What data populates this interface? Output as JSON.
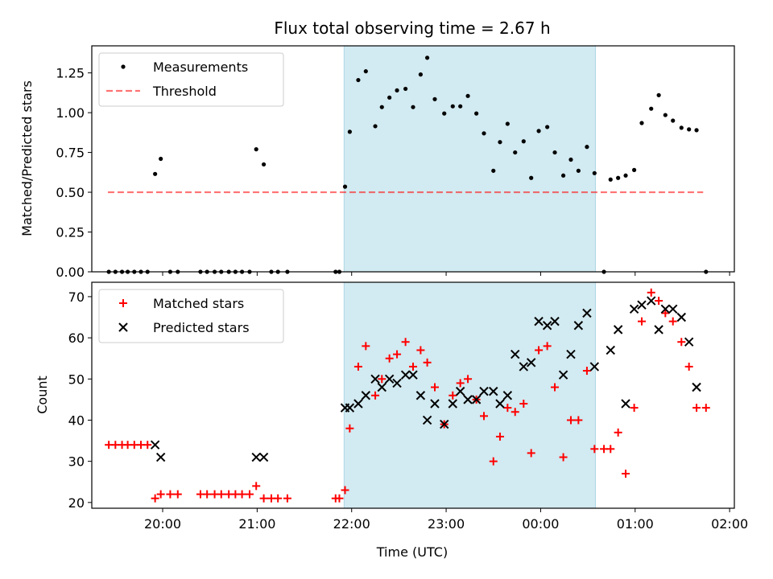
{
  "chart_data": [
    {
      "type": "scatter",
      "title": "Flux total observing time = 2.67 h",
      "xlabel": "",
      "ylabel": "Matched/Predicted stars",
      "xlim": [
        19.25,
        26.05
      ],
      "ylim": [
        0.0,
        1.42
      ],
      "yticks": [
        0.0,
        0.25,
        0.5,
        0.75,
        1.0,
        1.25
      ],
      "ytick_labels": [
        "0.00",
        "0.25",
        "0.50",
        "0.75",
        "1.00",
        "1.25"
      ],
      "xticks": [
        20,
        21,
        22,
        23,
        24,
        25,
        26
      ],
      "shaded_span": [
        21.92,
        24.58
      ],
      "shade_color": "#add8e6",
      "legend": {
        "position": "upper-left",
        "entries": [
          "Measurements",
          "Threshold"
        ]
      },
      "threshold": {
        "name": "Threshold",
        "y": 0.5,
        "x_range": [
          19.42,
          25.72
        ],
        "color": "#ff0000",
        "style": "dashed"
      },
      "series": [
        {
          "name": "Measurements",
          "marker": "dot",
          "color": "#000000",
          "points": [
            [
              19.43,
              0
            ],
            [
              19.5,
              0
            ],
            [
              19.57,
              0
            ],
            [
              19.63,
              0
            ],
            [
              19.7,
              0
            ],
            [
              19.77,
              0
            ],
            [
              19.84,
              0
            ],
            [
              19.92,
              0.615
            ],
            [
              19.98,
              0.71
            ],
            [
              20.08,
              0
            ],
            [
              20.16,
              0
            ],
            [
              20.4,
              0
            ],
            [
              20.47,
              0
            ],
            [
              20.55,
              0
            ],
            [
              20.62,
              0
            ],
            [
              20.7,
              0
            ],
            [
              20.77,
              0
            ],
            [
              20.84,
              0
            ],
            [
              20.92,
              0
            ],
            [
              20.99,
              0.77
            ],
            [
              21.07,
              0.675
            ],
            [
              21.15,
              0
            ],
            [
              21.22,
              0
            ],
            [
              21.32,
              0
            ],
            [
              21.83,
              0
            ],
            [
              21.87,
              0
            ],
            [
              21.93,
              0.535
            ],
            [
              21.98,
              0.88
            ],
            [
              22.07,
              1.205
            ],
            [
              22.15,
              1.26
            ],
            [
              22.25,
              0.915
            ],
            [
              22.32,
              1.035
            ],
            [
              22.4,
              1.095
            ],
            [
              22.48,
              1.14
            ],
            [
              22.57,
              1.15
            ],
            [
              22.65,
              1.035
            ],
            [
              22.73,
              1.24
            ],
            [
              22.8,
              1.345
            ],
            [
              22.88,
              1.085
            ],
            [
              22.98,
              0.995
            ],
            [
              23.07,
              1.04
            ],
            [
              23.15,
              1.04
            ],
            [
              23.23,
              1.105
            ],
            [
              23.32,
              0.995
            ],
            [
              23.4,
              0.87
            ],
            [
              23.5,
              0.635
            ],
            [
              23.57,
              0.815
            ],
            [
              23.65,
              0.93
            ],
            [
              23.73,
              0.75
            ],
            [
              23.82,
              0.82
            ],
            [
              23.9,
              0.59
            ],
            [
              23.98,
              0.885
            ],
            [
              24.07,
              0.91
            ],
            [
              24.15,
              0.75
            ],
            [
              24.24,
              0.605
            ],
            [
              24.32,
              0.705
            ],
            [
              24.4,
              0.635
            ],
            [
              24.49,
              0.785
            ],
            [
              24.57,
              0.62
            ],
            [
              24.67,
              0
            ],
            [
              24.74,
              0.58
            ],
            [
              24.82,
              0.59
            ],
            [
              24.9,
              0.605
            ],
            [
              24.99,
              0.64
            ],
            [
              25.07,
              0.935
            ],
            [
              25.17,
              1.025
            ],
            [
              25.25,
              1.11
            ],
            [
              25.32,
              0.985
            ],
            [
              25.4,
              0.95
            ],
            [
              25.49,
              0.905
            ],
            [
              25.57,
              0.895
            ],
            [
              25.65,
              0.89
            ],
            [
              25.75,
              0
            ]
          ]
        }
      ]
    },
    {
      "type": "scatter",
      "title": "",
      "xlabel": "Time (UTC)",
      "ylabel": "Count",
      "xlim": [
        19.25,
        26.05
      ],
      "ylim": [
        18.6,
        73.5
      ],
      "yticks": [
        20,
        30,
        40,
        50,
        60,
        70
      ],
      "ytick_labels": [
        "20",
        "30",
        "40",
        "50",
        "60",
        "70"
      ],
      "xticks": [
        20,
        21,
        22,
        23,
        24,
        25,
        26
      ],
      "xtick_labels": [
        "20:00",
        "21:00",
        "22:00",
        "23:00",
        "00:00",
        "01:00",
        "02:00"
      ],
      "shaded_span": [
        21.92,
        24.58
      ],
      "shade_color": "#add8e6",
      "legend": {
        "position": "upper-left",
        "entries": [
          "Matched stars",
          "Predicted stars"
        ]
      },
      "series": [
        {
          "name": "Matched stars",
          "marker": "plus",
          "color": "#ff0000",
          "points": [
            [
              19.43,
              34
            ],
            [
              19.5,
              34
            ],
            [
              19.57,
              34
            ],
            [
              19.63,
              34
            ],
            [
              19.7,
              34
            ],
            [
              19.77,
              34
            ],
            [
              19.84,
              34
            ],
            [
              19.92,
              21
            ],
            [
              19.98,
              22
            ],
            [
              20.08,
              22
            ],
            [
              20.16,
              22
            ],
            [
              20.4,
              22
            ],
            [
              20.47,
              22
            ],
            [
              20.55,
              22
            ],
            [
              20.62,
              22
            ],
            [
              20.7,
              22
            ],
            [
              20.77,
              22
            ],
            [
              20.84,
              22
            ],
            [
              20.92,
              22
            ],
            [
              20.99,
              24
            ],
            [
              21.07,
              21
            ],
            [
              21.15,
              21
            ],
            [
              21.22,
              21
            ],
            [
              21.32,
              21
            ],
            [
              21.83,
              21
            ],
            [
              21.87,
              21
            ],
            [
              21.93,
              23
            ],
            [
              21.98,
              38
            ],
            [
              22.07,
              53
            ],
            [
              22.15,
              58
            ],
            [
              22.25,
              46
            ],
            [
              22.32,
              50
            ],
            [
              22.4,
              55
            ],
            [
              22.48,
              56
            ],
            [
              22.57,
              59
            ],
            [
              22.65,
              53
            ],
            [
              22.73,
              57
            ],
            [
              22.8,
              54
            ],
            [
              22.88,
              48
            ],
            [
              22.98,
              39
            ],
            [
              23.07,
              46
            ],
            [
              23.15,
              49
            ],
            [
              23.23,
              50
            ],
            [
              23.32,
              45
            ],
            [
              23.4,
              41
            ],
            [
              23.5,
              30
            ],
            [
              23.57,
              36
            ],
            [
              23.65,
              43
            ],
            [
              23.73,
              42
            ],
            [
              23.82,
              44
            ],
            [
              23.9,
              32
            ],
            [
              23.98,
              57
            ],
            [
              24.07,
              58
            ],
            [
              24.15,
              48
            ],
            [
              24.24,
              31
            ],
            [
              24.32,
              40
            ],
            [
              24.4,
              40
            ],
            [
              24.49,
              52
            ],
            [
              24.57,
              33
            ],
            [
              24.67,
              33
            ],
            [
              24.74,
              33
            ],
            [
              24.82,
              37
            ],
            [
              24.9,
              27
            ],
            [
              24.99,
              43
            ],
            [
              25.07,
              64
            ],
            [
              25.17,
              71
            ],
            [
              25.25,
              69
            ],
            [
              25.32,
              66
            ],
            [
              25.4,
              64
            ],
            [
              25.49,
              59
            ],
            [
              25.57,
              53
            ],
            [
              25.65,
              43
            ],
            [
              25.75,
              43
            ]
          ]
        },
        {
          "name": "Predicted stars",
          "marker": "x",
          "color": "#000000",
          "points": [
            [
              19.92,
              34
            ],
            [
              19.98,
              31
            ],
            [
              20.99,
              31
            ],
            [
              21.07,
              31
            ],
            [
              21.93,
              43
            ],
            [
              21.98,
              43
            ],
            [
              22.07,
              44
            ],
            [
              22.15,
              46
            ],
            [
              22.25,
              50
            ],
            [
              22.32,
              48
            ],
            [
              22.4,
              50
            ],
            [
              22.48,
              49
            ],
            [
              22.57,
              51
            ],
            [
              22.65,
              51
            ],
            [
              22.73,
              46
            ],
            [
              22.8,
              40
            ],
            [
              22.88,
              44
            ],
            [
              22.98,
              39
            ],
            [
              23.07,
              44
            ],
            [
              23.15,
              47
            ],
            [
              23.23,
              45
            ],
            [
              23.32,
              45
            ],
            [
              23.4,
              47
            ],
            [
              23.5,
              47
            ],
            [
              23.57,
              44
            ],
            [
              23.65,
              46
            ],
            [
              23.73,
              56
            ],
            [
              23.82,
              53
            ],
            [
              23.9,
              54
            ],
            [
              23.98,
              64
            ],
            [
              24.07,
              63
            ],
            [
              24.15,
              64
            ],
            [
              24.24,
              51
            ],
            [
              24.32,
              56
            ],
            [
              24.4,
              63
            ],
            [
              24.49,
              66
            ],
            [
              24.57,
              53
            ],
            [
              24.74,
              57
            ],
            [
              24.82,
              62
            ],
            [
              24.9,
              44
            ],
            [
              24.99,
              67
            ],
            [
              25.07,
              68
            ],
            [
              25.17,
              69
            ],
            [
              25.25,
              62
            ],
            [
              25.32,
              67
            ],
            [
              25.4,
              67
            ],
            [
              25.49,
              65
            ],
            [
              25.57,
              59
            ],
            [
              25.65,
              48
            ]
          ]
        }
      ]
    }
  ]
}
